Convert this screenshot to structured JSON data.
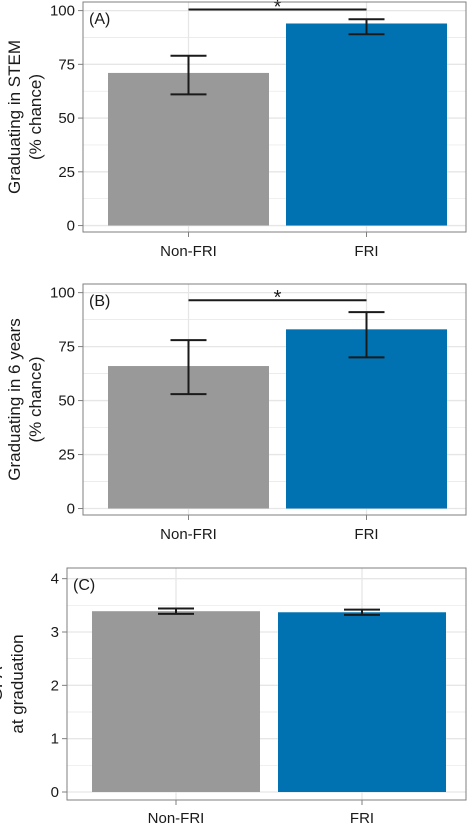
{
  "chart_data": [
    {
      "type": "bar",
      "panel_label": "(A)",
      "ylabel_lines": [
        "Graduating in STEM",
        "(% chance)"
      ],
      "categories": [
        "Non-FRI",
        "FRI"
      ],
      "values": [
        71,
        94
      ],
      "error_low": [
        61,
        89
      ],
      "error_high": [
        79,
        96
      ],
      "yticks": [
        0,
        25,
        50,
        75,
        100
      ],
      "ylim": [
        -3,
        104
      ],
      "grid": true,
      "significance": {
        "text": "*",
        "from": 0,
        "to": 1,
        "y": 100.5
      }
    },
    {
      "type": "bar",
      "panel_label": "(B)",
      "ylabel_lines": [
        "Graduating in 6 years",
        "(% chance)"
      ],
      "categories": [
        "Non-FRI",
        "FRI"
      ],
      "values": [
        66,
        83
      ],
      "error_low": [
        53,
        70
      ],
      "error_high": [
        78,
        91
      ],
      "yticks": [
        0,
        25,
        50,
        75,
        100
      ],
      "ylim": [
        -3,
        104
      ],
      "grid": true,
      "significance": {
        "text": "*",
        "from": 0,
        "to": 1,
        "y": 96.5
      }
    },
    {
      "type": "bar",
      "panel_label": "(C)",
      "ylabel_lines": [
        "GPA",
        "at graduation"
      ],
      "categories": [
        "Non-FRI",
        "FRI"
      ],
      "values": [
        3.39,
        3.37
      ],
      "error_low": [
        3.34,
        3.32
      ],
      "error_high": [
        3.44,
        3.42
      ],
      "yticks": [
        0,
        1,
        2,
        3,
        4
      ],
      "ylim": [
        -0.15,
        4.2
      ],
      "grid": true
    }
  ],
  "colors": {
    "bar_fills": [
      "#999999",
      "#0072b2"
    ],
    "grid": "#e6e6e6",
    "border": "#7f7f7f",
    "ink": "#1a1a1a"
  }
}
